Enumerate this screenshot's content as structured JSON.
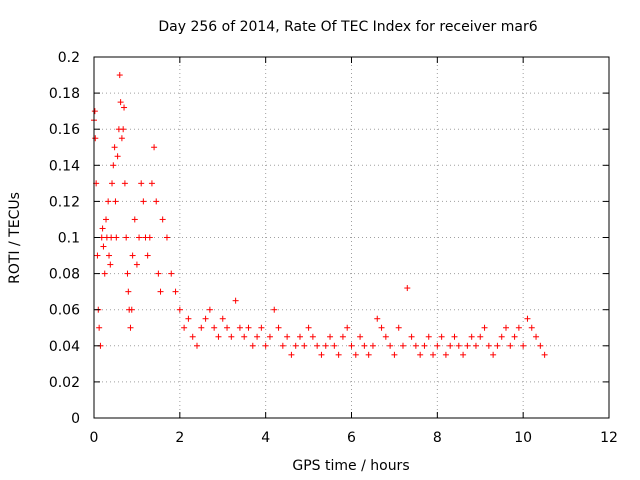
{
  "chart_data": {
    "type": "scatter",
    "title": "Day 256 of 2014, Rate Of TEC Index for receiver mar6",
    "xlabel": "GPS time / hours",
    "ylabel": "ROTI / TECUs",
    "xlim": [
      0,
      12
    ],
    "ylim": [
      0,
      0.2
    ],
    "xticks": [
      "0",
      "2",
      "4",
      "6",
      "8",
      "10",
      "12"
    ],
    "yticks": [
      "0",
      "0.02",
      "0.04",
      "0.06",
      "0.08",
      "0.1",
      "0.12",
      "0.14",
      "0.16",
      "0.18",
      "0.2"
    ],
    "grid": true,
    "marker": "+",
    "color": "#ff0000",
    "series": [
      {
        "name": "ROTI",
        "x": [
          0.0,
          0.02,
          0.03,
          0.05,
          0.08,
          0.1,
          0.12,
          0.15,
          0.18,
          0.2,
          0.22,
          0.25,
          0.28,
          0.3,
          0.33,
          0.35,
          0.38,
          0.4,
          0.42,
          0.45,
          0.48,
          0.5,
          0.52,
          0.55,
          0.58,
          0.6,
          0.62,
          0.65,
          0.68,
          0.7,
          0.72,
          0.75,
          0.78,
          0.8,
          0.82,
          0.85,
          0.88,
          0.9,
          0.95,
          1.0,
          1.05,
          1.1,
          1.15,
          1.2,
          1.25,
          1.3,
          1.35,
          1.4,
          1.45,
          1.5,
          1.55,
          1.6,
          1.7,
          1.8,
          1.9,
          2.0,
          2.1,
          2.2,
          2.3,
          2.4,
          2.5,
          2.6,
          2.7,
          2.8,
          2.9,
          3.0,
          3.1,
          3.2,
          3.3,
          3.4,
          3.5,
          3.6,
          3.7,
          3.8,
          3.9,
          4.0,
          4.1,
          4.2,
          4.3,
          4.4,
          4.5,
          4.6,
          4.7,
          4.8,
          4.9,
          5.0,
          5.1,
          5.2,
          5.3,
          5.4,
          5.5,
          5.6,
          5.7,
          5.8,
          5.9,
          6.0,
          6.1,
          6.2,
          6.3,
          6.4,
          6.5,
          6.6,
          6.7,
          6.8,
          6.9,
          7.0,
          7.1,
          7.2,
          7.3,
          7.4,
          7.5,
          7.6,
          7.7,
          7.8,
          7.9,
          8.0,
          8.1,
          8.2,
          8.3,
          8.4,
          8.5,
          8.6,
          8.7,
          8.8,
          8.9,
          9.0,
          9.1,
          9.2,
          9.3,
          9.4,
          9.5,
          9.6,
          9.7,
          9.8,
          9.9,
          10.0,
          10.1,
          10.2,
          10.3,
          10.4,
          10.5
        ],
        "y": [
          0.165,
          0.17,
          0.155,
          0.13,
          0.09,
          0.06,
          0.05,
          0.04,
          0.1,
          0.105,
          0.095,
          0.08,
          0.11,
          0.1,
          0.12,
          0.09,
          0.085,
          0.1,
          0.13,
          0.14,
          0.15,
          0.12,
          0.1,
          0.145,
          0.16,
          0.19,
          0.175,
          0.155,
          0.16,
          0.172,
          0.13,
          0.1,
          0.08,
          0.07,
          0.06,
          0.05,
          0.06,
          0.09,
          0.11,
          0.085,
          0.1,
          0.13,
          0.12,
          0.1,
          0.09,
          0.1,
          0.13,
          0.15,
          0.12,
          0.08,
          0.07,
          0.11,
          0.1,
          0.08,
          0.07,
          0.06,
          0.05,
          0.055,
          0.045,
          0.04,
          0.05,
          0.055,
          0.06,
          0.05,
          0.045,
          0.055,
          0.05,
          0.045,
          0.065,
          0.05,
          0.045,
          0.05,
          0.04,
          0.045,
          0.05,
          0.04,
          0.045,
          0.06,
          0.05,
          0.04,
          0.045,
          0.035,
          0.04,
          0.045,
          0.04,
          0.05,
          0.045,
          0.04,
          0.035,
          0.04,
          0.045,
          0.04,
          0.035,
          0.045,
          0.05,
          0.04,
          0.035,
          0.045,
          0.04,
          0.035,
          0.04,
          0.055,
          0.05,
          0.045,
          0.04,
          0.035,
          0.05,
          0.04,
          0.072,
          0.045,
          0.04,
          0.035,
          0.04,
          0.045,
          0.035,
          0.04,
          0.045,
          0.035,
          0.04,
          0.045,
          0.04,
          0.035,
          0.04,
          0.045,
          0.04,
          0.045,
          0.05,
          0.04,
          0.035,
          0.04,
          0.045,
          0.05,
          0.04,
          0.045,
          0.05,
          0.04,
          0.055,
          0.05,
          0.045,
          0.04,
          0.035
        ]
      }
    ]
  }
}
